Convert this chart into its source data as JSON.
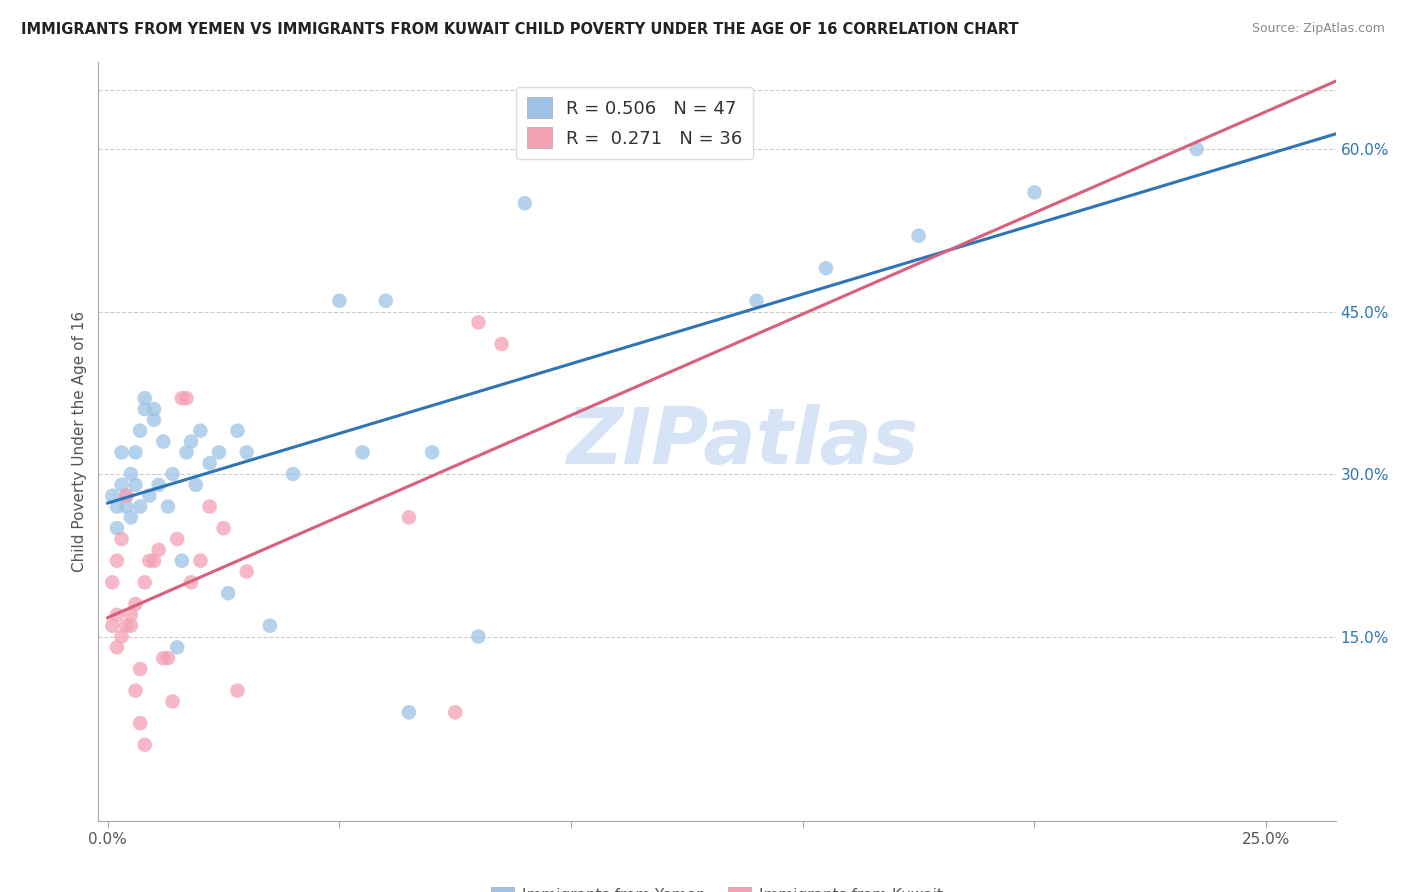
{
  "title": "IMMIGRANTS FROM YEMEN VS IMMIGRANTS FROM KUWAIT CHILD POVERTY UNDER THE AGE OF 16 CORRELATION CHART",
  "source": "Source: ZipAtlas.com",
  "ylabel": "Child Poverty Under the Age of 16",
  "xlim": [
    -0.002,
    0.265
  ],
  "ylim": [
    -0.02,
    0.68
  ],
  "x_tick_positions": [
    0.0,
    0.05,
    0.1,
    0.15,
    0.2,
    0.25
  ],
  "x_tick_labels": [
    "0.0%",
    "",
    "",
    "",
    "",
    "25.0%"
  ],
  "y_tick_positions": [
    0.15,
    0.3,
    0.45,
    0.6
  ],
  "y_tick_labels": [
    "15.0%",
    "30.0%",
    "45.0%",
    "60.0%"
  ],
  "legend1_r": "0.506",
  "legend1_n": "47",
  "legend2_r": "0.271",
  "legend2_n": "36",
  "legend1_label": "Immigrants from Yemen",
  "legend2_label": "Immigrants from Kuwait",
  "blue_dot_color": "#9dc3e6",
  "pink_dot_color": "#f4a0b5",
  "line_blue": "#2f75b6",
  "line_pink": "#d95f7a",
  "line_dashed_color": "#cccccc",
  "watermark": "ZIPatlas",
  "watermark_color": "#d6e4f5",
  "grid_color": "#cccccc",
  "spine_color": "#aaaaaa",
  "title_color": "#222222",
  "source_color": "#888888",
  "ylabel_color": "#555555",
  "tick_label_color_right": "#2f75b6",
  "yemen_x": [
    0.001,
    0.002,
    0.002,
    0.003,
    0.003,
    0.004,
    0.004,
    0.005,
    0.005,
    0.006,
    0.006,
    0.007,
    0.007,
    0.008,
    0.008,
    0.009,
    0.01,
    0.01,
    0.011,
    0.012,
    0.013,
    0.014,
    0.015,
    0.016,
    0.017,
    0.018,
    0.019,
    0.02,
    0.022,
    0.024,
    0.026,
    0.028,
    0.03,
    0.035,
    0.04,
    0.05,
    0.055,
    0.06,
    0.065,
    0.07,
    0.08,
    0.09,
    0.14,
    0.155,
    0.175,
    0.2,
    0.235
  ],
  "yemen_y": [
    0.28,
    0.27,
    0.25,
    0.29,
    0.32,
    0.28,
    0.27,
    0.26,
    0.3,
    0.29,
    0.32,
    0.27,
    0.34,
    0.36,
    0.37,
    0.28,
    0.35,
    0.36,
    0.29,
    0.33,
    0.27,
    0.3,
    0.14,
    0.22,
    0.32,
    0.33,
    0.29,
    0.34,
    0.31,
    0.32,
    0.19,
    0.34,
    0.32,
    0.16,
    0.3,
    0.46,
    0.32,
    0.46,
    0.08,
    0.32,
    0.15,
    0.55,
    0.46,
    0.49,
    0.52,
    0.56,
    0.6
  ],
  "kuwait_x": [
    0.001,
    0.001,
    0.002,
    0.002,
    0.002,
    0.003,
    0.003,
    0.004,
    0.004,
    0.005,
    0.005,
    0.006,
    0.006,
    0.007,
    0.007,
    0.008,
    0.008,
    0.009,
    0.01,
    0.011,
    0.012,
    0.013,
    0.014,
    0.015,
    0.016,
    0.017,
    0.018,
    0.02,
    0.022,
    0.025,
    0.028,
    0.03,
    0.065,
    0.075,
    0.08,
    0.085
  ],
  "kuwait_y": [
    0.2,
    0.16,
    0.17,
    0.22,
    0.14,
    0.24,
    0.15,
    0.16,
    0.28,
    0.16,
    0.17,
    0.18,
    0.1,
    0.12,
    0.07,
    0.05,
    0.2,
    0.22,
    0.22,
    0.23,
    0.13,
    0.13,
    0.09,
    0.24,
    0.37,
    0.37,
    0.2,
    0.22,
    0.27,
    0.25,
    0.1,
    0.21,
    0.26,
    0.08,
    0.44,
    0.42
  ]
}
